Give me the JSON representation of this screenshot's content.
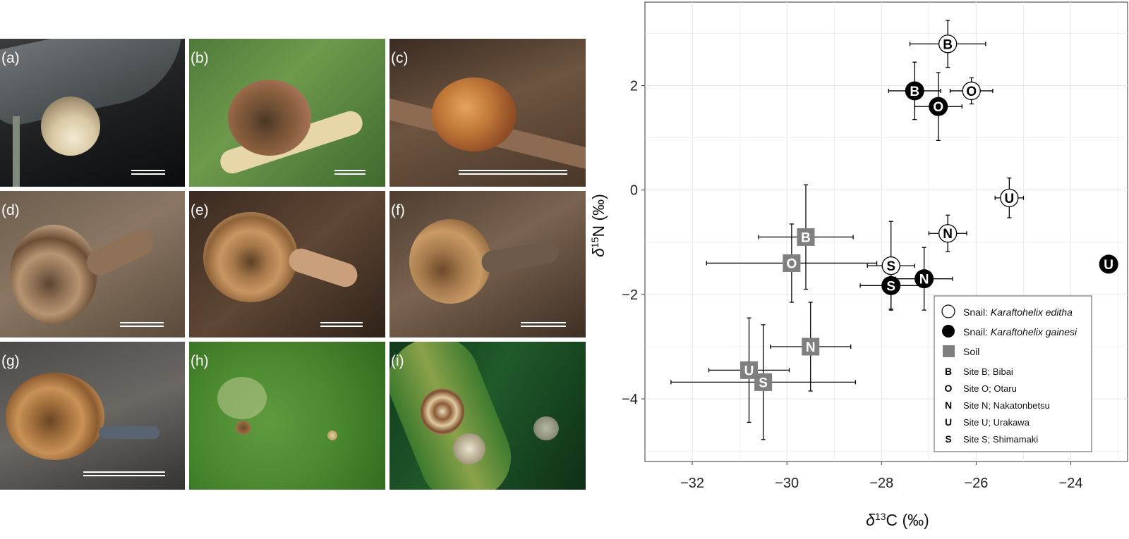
{
  "photos": {
    "labels": [
      "(a)",
      "(b)",
      "(c)",
      "(d)",
      "(e)",
      "(f)",
      "(g)",
      "(h)",
      "(i)"
    ]
  },
  "colors": {
    "soil": "#7f7f7f",
    "editha_fill": "#ffffff",
    "gainesi_fill": "#000000",
    "grid": "#e5e5e5",
    "error_bar": "#000000"
  },
  "chart_data": {
    "type": "scatter",
    "title": "",
    "xlabel_prefix": "δ",
    "xlabel_sup": "13",
    "xlabel_suffix": "C (‰)",
    "ylabel_prefix": "δ",
    "ylabel_sup": "15",
    "ylabel_suffix": "N (‰)",
    "xlim": [
      -33.0,
      -22.8
    ],
    "ylim": [
      -5.2,
      3.6
    ],
    "xticks": [
      -32,
      -30,
      -28,
      -26,
      -24
    ],
    "xtick_labels": [
      "−32",
      "−30",
      "−28",
      "−26",
      "−24"
    ],
    "yticks": [
      -4,
      -2,
      0,
      2
    ],
    "ytick_labels": [
      "−4",
      "−2",
      "0",
      "2"
    ],
    "grid": true,
    "legend_position": "bottom-right",
    "series": [
      {
        "name": "Snail: Karaftohelix editha",
        "marker": "circle-open",
        "points": [
          {
            "site": "B",
            "x": -26.6,
            "y": 2.8,
            "xerr": 0.8,
            "yerr": 0.45
          },
          {
            "site": "O",
            "x": -26.1,
            "y": 1.9,
            "xerr": 0.45,
            "yerr": 0.25
          },
          {
            "site": "U",
            "x": -25.3,
            "y": -0.15,
            "xerr": 0.3,
            "yerr": 0.38
          },
          {
            "site": "N",
            "x": -26.6,
            "y": -0.83,
            "xerr": 0.4,
            "yerr": 0.35
          },
          {
            "site": "S",
            "x": -27.8,
            "y": -1.45,
            "xerr": 0.5,
            "yerr": 0.85
          }
        ]
      },
      {
        "name": "Snail: Karaftohelix gainesi",
        "marker": "circle-filled",
        "points": [
          {
            "site": "B",
            "x": -27.3,
            "y": 1.9,
            "xerr": 0.55,
            "yerr": 0.55
          },
          {
            "site": "O",
            "x": -26.8,
            "y": 1.6,
            "xerr": 0.5,
            "yerr": 0.65
          },
          {
            "site": "U",
            "x": -23.2,
            "y": -1.42,
            "xerr": 0,
            "yerr": 0
          },
          {
            "site": "N",
            "x": -27.1,
            "y": -1.7,
            "xerr": 0.6,
            "yerr": 0.6
          },
          {
            "site": "S",
            "x": -27.8,
            "y": -1.83,
            "xerr": 0.65,
            "yerr": 0.45
          }
        ]
      },
      {
        "name": "Soil",
        "marker": "square",
        "points": [
          {
            "site": "B",
            "x": -29.6,
            "y": -0.9,
            "xerr": 1.0,
            "yerr": 1.0
          },
          {
            "site": "O",
            "x": -29.9,
            "y": -1.4,
            "xerr": 1.8,
            "yerr": 0.75
          },
          {
            "site": "N",
            "x": -29.5,
            "y": -3.0,
            "xerr": 0.85,
            "yerr": 0.85
          },
          {
            "site": "U",
            "x": -30.8,
            "y": -3.45,
            "xerr": 0.85,
            "yerr": 1.0
          },
          {
            "site": "S",
            "x": -30.5,
            "y": -3.68,
            "xerr": 1.95,
            "yerr": 1.1
          }
        ]
      }
    ],
    "legend": {
      "entries": [
        {
          "marker": "circle-open",
          "prefix": "Snail: ",
          "italic": "Karaftohelix editha"
        },
        {
          "marker": "circle-filled",
          "prefix": "Snail: ",
          "italic": "Karaftohelix gainesi"
        },
        {
          "marker": "square",
          "prefix": "Soil",
          "italic": ""
        }
      ],
      "sites": [
        {
          "code": "B",
          "text": "Site B; Bibai"
        },
        {
          "code": "O",
          "text": "Site O; Otaru"
        },
        {
          "code": "N",
          "text": "Site N; Nakatonbetsu"
        },
        {
          "code": "U",
          "text": "Site U; Urakawa"
        },
        {
          "code": "S",
          "text": "Site S; Shimamaki"
        }
      ]
    }
  }
}
